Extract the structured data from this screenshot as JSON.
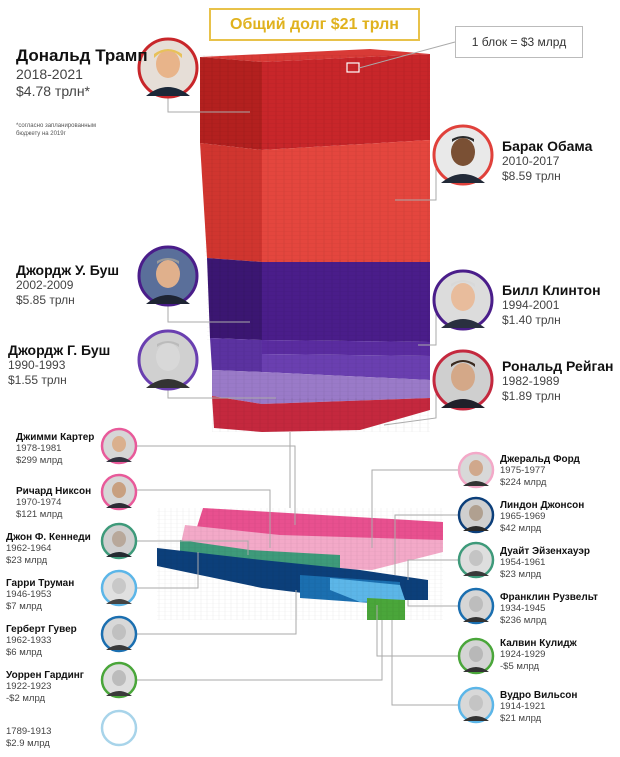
{
  "title": "Общий долг $21 трлн",
  "legend": "1 блок = $3 млрд",
  "footnote": "*согласно запланированным бюджету на 2019г",
  "presidents": {
    "trump": {
      "name": "Дональд Трамп",
      "years": "2018-2021",
      "amount": "$4.78 трлн*"
    },
    "obama": {
      "name": "Барак Обама",
      "years": "2010-2017",
      "amount": "$8.59 трлн"
    },
    "bush_jr": {
      "name": "Джордж У. Буш",
      "years": "2002-2009",
      "amount": "$5.85 трлн"
    },
    "clinton": {
      "name": "Билл Клинтон",
      "years": "1994-2001",
      "amount": "$1.40 трлн"
    },
    "bush_sr": {
      "name": "Джордж Г. Буш",
      "years": "1990-1993",
      "amount": "$1.55 трлн"
    },
    "reagan": {
      "name": "Рональд Рейган",
      "years": "1982-1989",
      "amount": "$1.89 трлн"
    },
    "carter": {
      "name": "Джимми Картер",
      "years": "1978-1981",
      "amount": "$299 млрд"
    },
    "ford": {
      "name": "Джеральд Форд",
      "years": "1975-1977",
      "amount": "$224 млрд"
    },
    "nixon": {
      "name": "Ричард Никсон",
      "years": "1970-1974",
      "amount": "$121 млрд"
    },
    "johnson": {
      "name": "Линдон Джонсон",
      "years": "1965-1969",
      "amount": "$42 млрд"
    },
    "kennedy": {
      "name": "Джон Ф. Кеннеди",
      "years": "1962-1964",
      "amount": "$23 млрд"
    },
    "eisenhower": {
      "name": "Дуайт Эйзенхауэр",
      "years": "1954-1961",
      "amount": "$23 млрд"
    },
    "truman": {
      "name": "Гарри Труман",
      "years": "1946-1953",
      "amount": "$7 млрд"
    },
    "roosevelt": {
      "name": "Франклин Рузвельт",
      "years": "1934-1945",
      "amount": "$236 млрд"
    },
    "hoover": {
      "name": "Герберт Гувер",
      "years": "1962-1933",
      "amount": "$6 млрд"
    },
    "coolidge": {
      "name": "Калвин Кулидж",
      "years": "1924-1929",
      "amount": "-$5 млрд"
    },
    "harding": {
      "name": "Уоррен Гардинг",
      "years": "1922-1923",
      "amount": "-$2 млрд"
    },
    "wilson": {
      "name": "Вудро Вильсон",
      "years": "1914-1921",
      "amount": "$21 млрд"
    },
    "early": {
      "name": "",
      "years": "1789-1913",
      "amount": "$2.9 млрд"
    }
  },
  "colors": {
    "trump": "#c8262a",
    "obama": "#e0413b",
    "bush_jr": "#4a1d8a",
    "bush_sr": "#6a3fb0",
    "bush_sr_light": "#9a7ac8",
    "reagan": "#c4283e",
    "pink": "#e85a9a",
    "light_pink": "#f3a9c8",
    "dark_blue": "#0c3f7a",
    "mid_blue": "#1b6fb0",
    "light_blue": "#5cb6e8",
    "green": "#4aa63a",
    "title_gold": "#e0b21e"
  }
}
